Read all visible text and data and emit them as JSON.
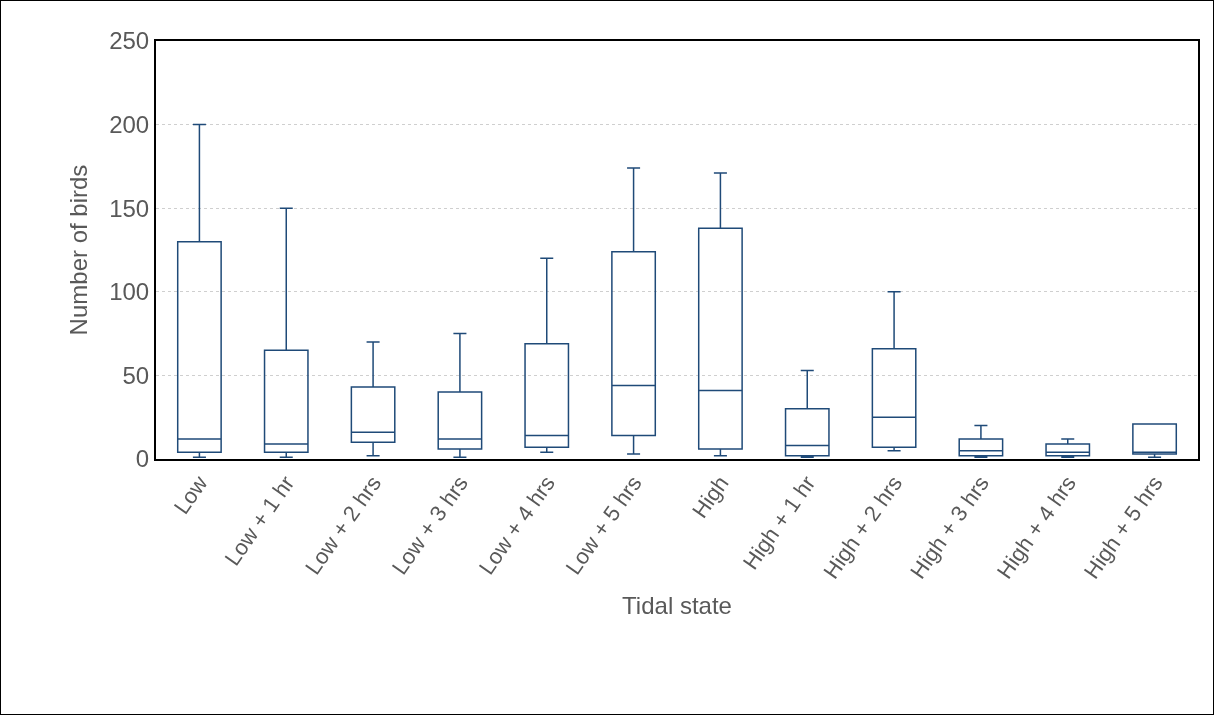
{
  "chart_data": {
    "type": "box",
    "xlabel": "Tidal state",
    "ylabel": "Number of birds",
    "categories": [
      "Low",
      "Low + 1 hr",
      "Low + 2 hrs",
      "Low + 3 hrs",
      "Low + 4 hrs",
      "Low + 5 hrs",
      "High",
      "High + 1 hr",
      "High + 2 hrs",
      "High + 3 hrs",
      "High + 4 hrs",
      "High + 5 hrs"
    ],
    "color": "#1f4a78",
    "boxes": [
      {
        "low": 1,
        "q1": 4,
        "median": 12,
        "q3": 130,
        "high": 200
      },
      {
        "low": 1,
        "q1": 4,
        "median": 9,
        "q3": 65,
        "high": 150
      },
      {
        "low": 2,
        "q1": 10,
        "median": 16,
        "q3": 43,
        "high": 70
      },
      {
        "low": 1,
        "q1": 6,
        "median": 12,
        "q3": 40,
        "high": 75
      },
      {
        "low": 4,
        "q1": 7,
        "median": 14,
        "q3": 69,
        "high": 120
      },
      {
        "low": 3,
        "q1": 14,
        "median": 44,
        "q3": 124,
        "high": 174
      },
      {
        "low": 2,
        "q1": 6,
        "median": 41,
        "q3": 138,
        "high": 171
      },
      {
        "low": 1,
        "q1": 2,
        "median": 8,
        "q3": 30,
        "high": 53
      },
      {
        "low": 5,
        "q1": 7,
        "median": 25,
        "q3": 66,
        "high": 100
      },
      {
        "low": 1,
        "q1": 2,
        "median": 5,
        "q3": 12,
        "high": 20
      },
      {
        "low": 1,
        "q1": 2,
        "median": 4,
        "q3": 9,
        "high": 12
      },
      {
        "low": 1,
        "q1": 3,
        "median": 4,
        "q3": 21,
        "high": 21
      }
    ],
    "ylim": [
      0,
      250
    ],
    "yticks": [
      0,
      50,
      100,
      150,
      200,
      250
    ],
    "grid": "y"
  }
}
